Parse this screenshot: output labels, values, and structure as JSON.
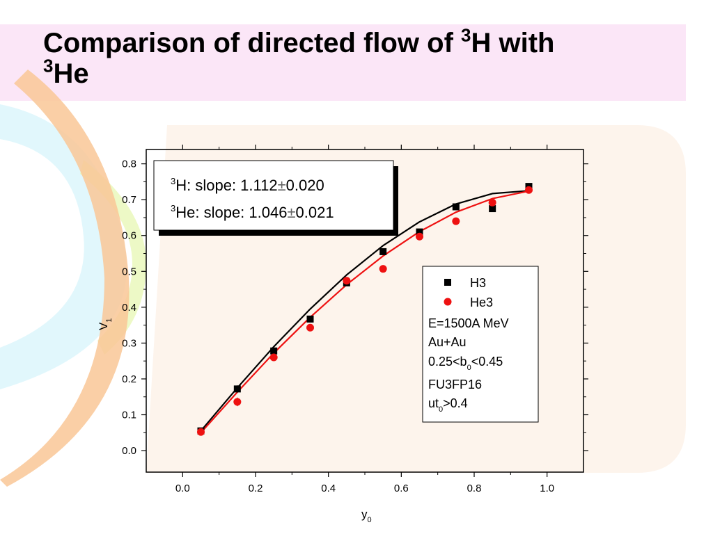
{
  "slide": {
    "title_line1_text": "Comparison of directed flow of ",
    "title_sup1": "3",
    "title_line1_end": "H with",
    "title_sup2": "3",
    "title_line2_text": "He"
  },
  "colors": {
    "h3": "#000000",
    "he3": "#ee1111",
    "title_band": "#fbe6f7",
    "chart_panel": "#fdf4ec"
  },
  "chart_data": {
    "type": "scatter",
    "xlabel": "y",
    "xlabel_sub": "0",
    "ylabel": "V",
    "ylabel_sub": "1",
    "xlim": [
      -0.1,
      1.1
    ],
    "ylim": [
      -0.06,
      0.84
    ],
    "x_ticks": [
      0.0,
      0.2,
      0.4,
      0.6,
      0.8,
      1.0
    ],
    "x_tick_labels": [
      "0.0",
      "0.2",
      "0.4",
      "0.6",
      "0.8",
      "1.0"
    ],
    "y_ticks": [
      0.0,
      0.1,
      0.2,
      0.3,
      0.4,
      0.5,
      0.6,
      0.7,
      0.8
    ],
    "y_tick_labels": [
      "0.0",
      "0.1",
      "0.2",
      "0.3",
      "0.4",
      "0.5",
      "0.6",
      "0.7",
      "0.8"
    ],
    "grid": false,
    "series": [
      {
        "name": "H3",
        "marker": "square",
        "color": "#000000",
        "x": [
          0.05,
          0.15,
          0.25,
          0.35,
          0.45,
          0.55,
          0.65,
          0.75,
          0.85,
          0.95
        ],
        "y": [
          0.055,
          0.172,
          0.278,
          0.367,
          0.468,
          0.555,
          0.61,
          0.68,
          0.675,
          0.737
        ],
        "err": [
          0.008,
          0.01,
          0.008,
          0.007,
          0.008,
          0.007,
          0.006,
          0.006,
          0.008,
          0.007
        ],
        "fit_x": [
          0.05,
          0.15,
          0.25,
          0.35,
          0.45,
          0.55,
          0.65,
          0.75,
          0.85,
          0.95
        ],
        "fit_y": [
          0.055,
          0.175,
          0.29,
          0.395,
          0.49,
          0.572,
          0.638,
          0.688,
          0.717,
          0.725
        ]
      },
      {
        "name": "He3",
        "marker": "circle",
        "color": "#ee1111",
        "x": [
          0.05,
          0.15,
          0.25,
          0.35,
          0.45,
          0.55,
          0.65,
          0.75,
          0.85,
          0.95
        ],
        "y": [
          0.052,
          0.136,
          0.26,
          0.343,
          0.474,
          0.507,
          0.597,
          0.64,
          0.692,
          0.727
        ],
        "err": [
          0.01,
          0.012,
          0.009,
          0.009,
          0.01,
          0.008,
          0.007,
          0.007,
          0.008,
          0.007
        ],
        "fit_x": [
          0.05,
          0.15,
          0.25,
          0.35,
          0.45,
          0.55,
          0.65,
          0.75,
          0.85,
          0.95
        ],
        "fit_y": [
          0.05,
          0.163,
          0.272,
          0.372,
          0.463,
          0.543,
          0.611,
          0.665,
          0.703,
          0.724
        ]
      }
    ],
    "slope_box": {
      "line1_sup": "3",
      "line1": "H: slope: 1.112",
      "line1_pm": "±",
      "line1_err": "0.020",
      "line2_sup": "3",
      "line2": "He: slope: 1.046",
      "line2_pm": "±",
      "line2_err": "0.021"
    },
    "legend": {
      "placement": "right",
      "entry_h3": "H3",
      "entry_he3": "He3",
      "info_energy": "E=1500A MeV",
      "info_system": "Au+Au",
      "info_b_pre": "0.25<b",
      "info_b_sub": "0",
      "info_b_post": "<0.45",
      "info_filter": "FU3FP16",
      "info_ut_pre": "ut",
      "info_ut_sub": "0",
      "info_ut_post": ">0.4"
    }
  }
}
